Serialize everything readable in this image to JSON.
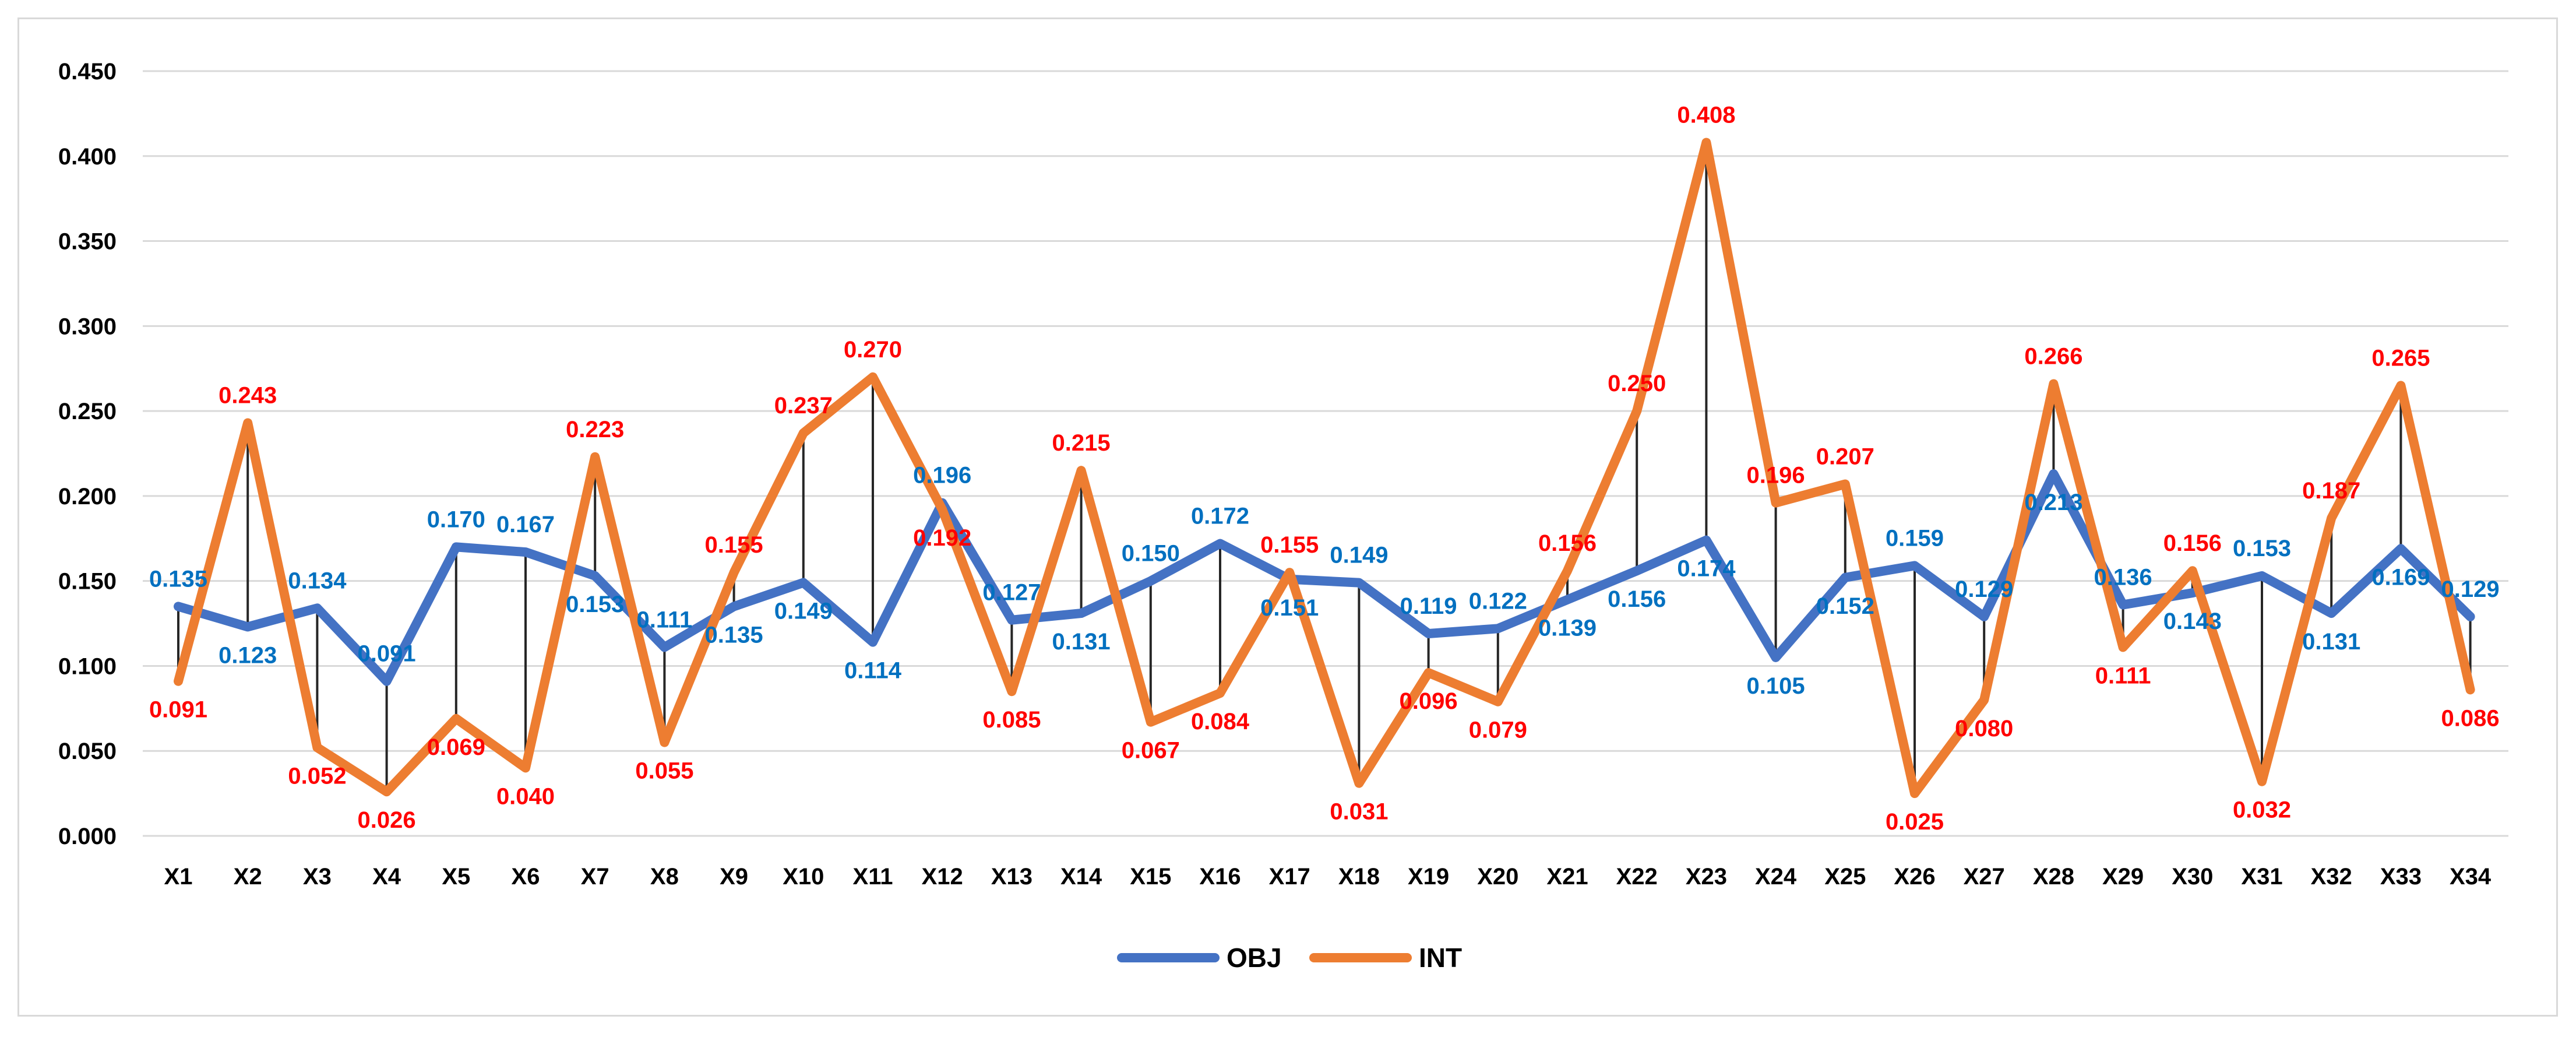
{
  "chart_data": {
    "type": "line",
    "title": "",
    "xlabel": "",
    "ylabel": "",
    "ylim": [
      0,
      0.45
    ],
    "y_ticks": [
      "0.000",
      "0.050",
      "0.100",
      "0.150",
      "0.200",
      "0.250",
      "0.300",
      "0.350",
      "0.400",
      "0.450"
    ],
    "grid": true,
    "legend_position": "bottom",
    "categories": [
      "X1",
      "X2",
      "X3",
      "X4",
      "X5",
      "X6",
      "X7",
      "X8",
      "X9",
      "X10",
      "X11",
      "X12",
      "X13",
      "X14",
      "X15",
      "X16",
      "X17",
      "X18",
      "X19",
      "X20",
      "X21",
      "X22",
      "X23",
      "X24",
      "X25",
      "X26",
      "X27",
      "X28",
      "X29",
      "X30",
      "X31",
      "X32",
      "X33",
      "X34"
    ],
    "series": [
      {
        "name": "OBJ",
        "color": "#4472c4",
        "label_color": "#0070c0",
        "values": [
          0.135,
          0.123,
          0.134,
          0.091,
          0.17,
          0.167,
          0.153,
          0.111,
          0.135,
          0.149,
          0.114,
          0.196,
          0.127,
          0.131,
          0.15,
          0.172,
          0.151,
          0.149,
          0.119,
          0.122,
          0.139,
          0.156,
          0.174,
          0.105,
          0.152,
          0.159,
          0.129,
          0.213,
          0.136,
          0.143,
          0.153,
          0.131,
          0.169,
          0.129
        ],
        "labels": [
          "0.135",
          "0.123",
          "0.134",
          "0.091",
          "0.170",
          "0.167",
          "0.153",
          "0.111",
          "0.135",
          "0.149",
          "0.114",
          "0.196",
          "0.127",
          "0.131",
          "0.150",
          "0.172",
          "0.151",
          "0.149",
          "0.119",
          "0.122",
          "0.139",
          "0.156",
          "0.174",
          "0.105",
          "0.152",
          "0.159",
          "0.129",
          "0.213",
          "0.136",
          "0.143",
          "0.153",
          "0.131",
          "0.169",
          "0.129"
        ]
      },
      {
        "name": "INT",
        "color": "#ed7d31",
        "label_color": "#ff0000",
        "values": [
          0.091,
          0.243,
          0.052,
          0.026,
          0.069,
          0.04,
          0.223,
          0.055,
          0.155,
          0.237,
          0.27,
          0.192,
          0.085,
          0.215,
          0.067,
          0.084,
          0.155,
          0.031,
          0.096,
          0.079,
          0.156,
          0.25,
          0.408,
          0.196,
          0.207,
          0.025,
          0.08,
          0.266,
          0.111,
          0.156,
          0.032,
          0.187,
          0.265,
          0.086
        ],
        "labels": [
          "0.091",
          "0.243",
          "0.052",
          "0.026",
          "0.069",
          "0.040",
          "0.223",
          "0.055",
          "0.155",
          "0.237",
          "0.270",
          "0.192",
          "0.085",
          "0.215",
          "0.067",
          "0.084",
          "0.155",
          "0.031",
          "0.096",
          "0.079",
          "0.156",
          "0.250",
          "0.408",
          "0.196",
          "0.207",
          "0.025",
          "0.080",
          "0.266",
          "0.111",
          "0.156",
          "0.032",
          "0.187",
          "0.265",
          "0.086"
        ]
      }
    ]
  }
}
